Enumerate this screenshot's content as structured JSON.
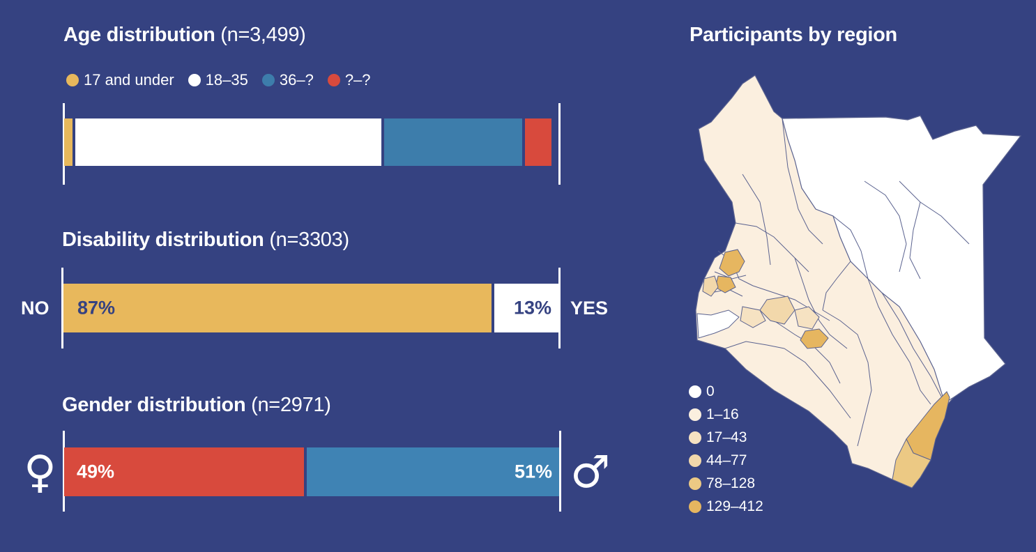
{
  "age": {
    "title": "Age distribution",
    "n": "(n=3,499)",
    "legend": [
      {
        "label": "17 and under",
        "color": "#e8b85c"
      },
      {
        "label": "18–35",
        "color": "#ffffff"
      },
      {
        "label": "36–?",
        "color": "#3d7dab"
      },
      {
        "label": "?–?",
        "color": "#d84a3d"
      }
    ]
  },
  "disability": {
    "title": "Disability distribution",
    "n": "(n=3303)",
    "left_label": "NO",
    "right_label": "YES",
    "no_pct": "87%",
    "yes_pct": "13%"
  },
  "gender": {
    "title": "Gender distribution",
    "n": "(n=2971)",
    "female_pct": "49%",
    "male_pct": "51%",
    "female_icon": "female-symbol-icon",
    "male_icon": "male-symbol-icon"
  },
  "map": {
    "title": "Participants by region",
    "legend": [
      {
        "label": "0",
        "color": "#ffffff"
      },
      {
        "label": "1–16",
        "color": "#fbefdf"
      },
      {
        "label": "17–43",
        "color": "#f6e2c2"
      },
      {
        "label": "44–77",
        "color": "#f2d8ab"
      },
      {
        "label": "78–128",
        "color": "#ecc984"
      },
      {
        "label": "129–412",
        "color": "#e6b660"
      }
    ]
  },
  "chart_data": [
    {
      "type": "bar",
      "title": "Age distribution",
      "subtitle": "(n=3,499)",
      "stacked": true,
      "orientation": "horizontal",
      "series": [
        {
          "name": "17 and under",
          "values": [
            2.2
          ]
        },
        {
          "name": "18–35",
          "values": [
            62.5
          ]
        },
        {
          "name": "36–?",
          "values": [
            28.6
          ]
        },
        {
          "name": "?–?",
          "values": [
            5.3
          ]
        }
      ],
      "xlim": [
        0,
        100
      ]
    },
    {
      "type": "bar",
      "title": "Disability distribution",
      "subtitle": "(n=3303)",
      "stacked": true,
      "orientation": "horizontal",
      "categories": [
        "NO",
        "YES"
      ],
      "values": [
        87,
        13
      ],
      "xlim": [
        0,
        100
      ]
    },
    {
      "type": "bar",
      "title": "Gender distribution",
      "subtitle": "(n=2971)",
      "stacked": true,
      "orientation": "horizontal",
      "values": [
        49,
        51
      ],
      "xlim": [
        0,
        100
      ]
    }
  ]
}
